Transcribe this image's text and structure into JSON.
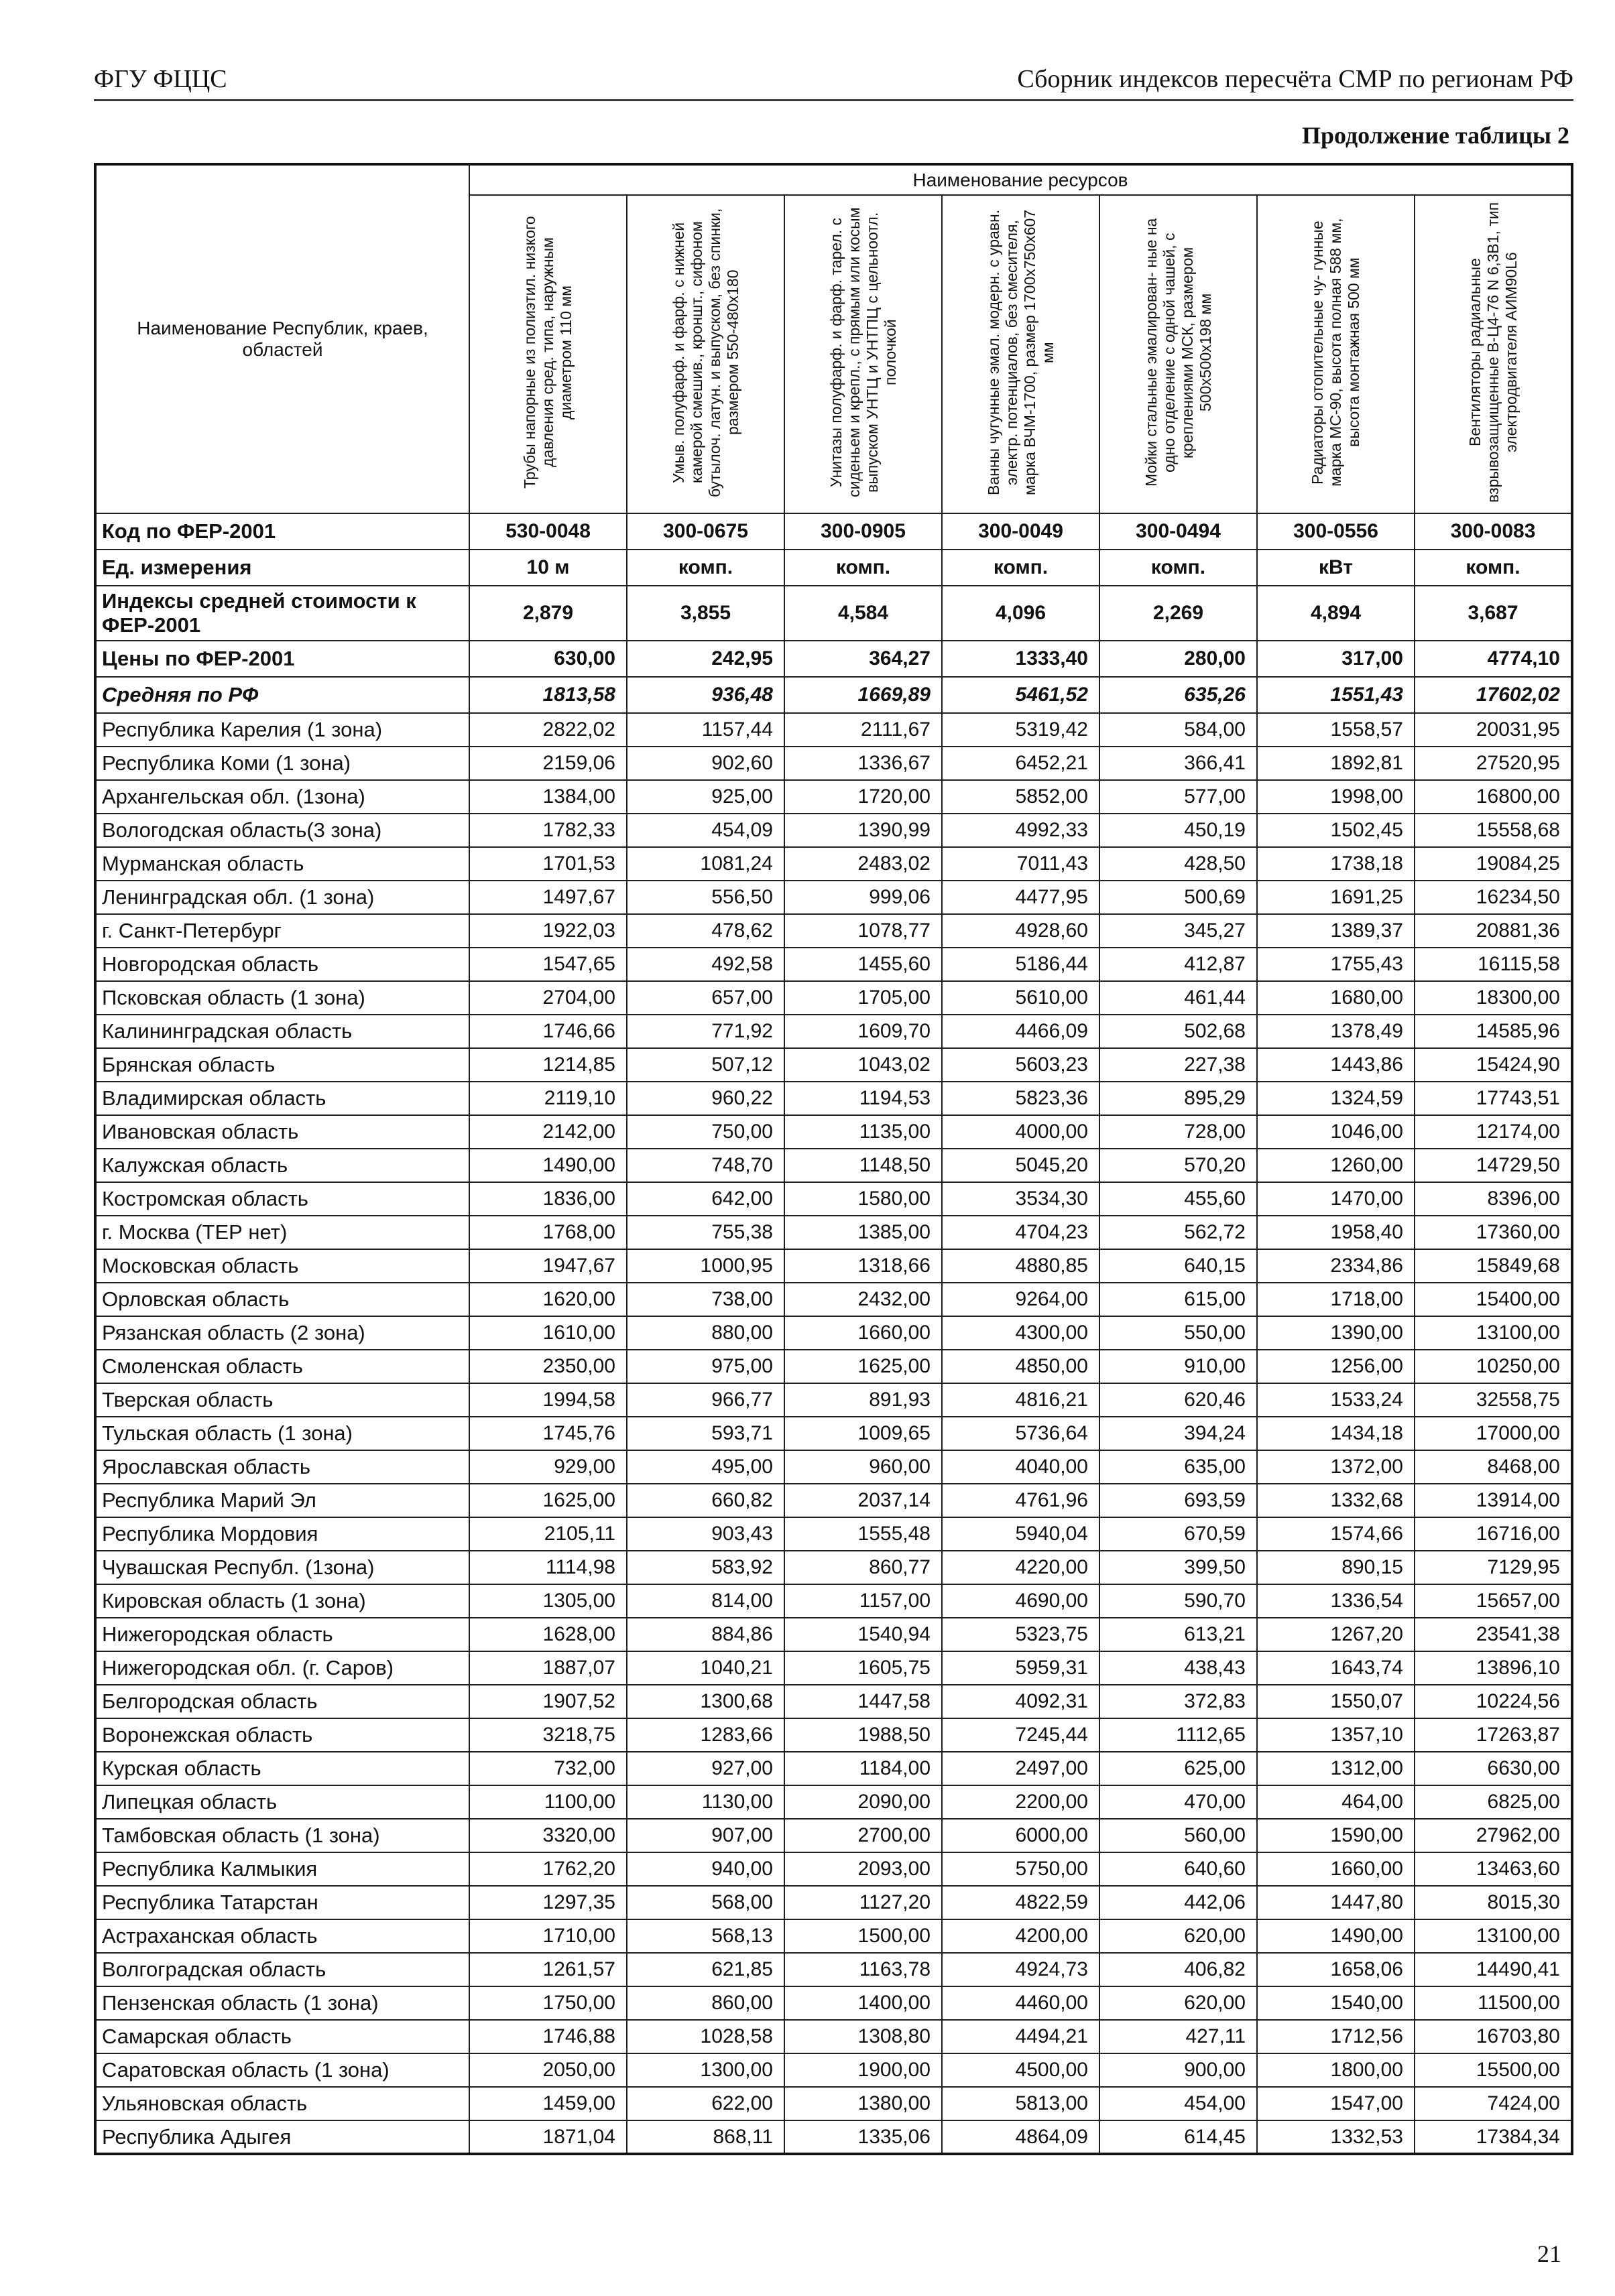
{
  "page": {
    "header_left": "ФГУ ФЦЦС",
    "header_right": "Сборник индексов пересчёта СМР  по регионам РФ",
    "subtitle": "Продолжение таблицы 2",
    "page_number": "21"
  },
  "table": {
    "resources_header": "Наименование ресурсов",
    "region_col_header": "Наименование Республик, краев, областей",
    "row_labels": {
      "code": "Код по ФЕР-2001",
      "unit": "Ед. измерения",
      "index": "Индексы средней стоимости к ФЕР-2001",
      "price": "Цены по ФЕР-2001",
      "avg": "Средняя по РФ"
    },
    "columns": [
      {
        "title": "Трубы напорные из полиэтил. низкого давления сред. типа, наружным диаметром 110 мм",
        "code": "530-0048",
        "unit": "10 м",
        "index": "2,879",
        "price": "630,00",
        "avg": "1813,58"
      },
      {
        "title": "Умыв. полуфарф. и фарф. с нижней камерой смешив., кроншт., сифоном бутылоч. латун. и выпуском, без спинки, размером 550-480х180",
        "code": "300-0675",
        "unit": "комп.",
        "index": "3,855",
        "price": "242,95",
        "avg": "936,48"
      },
      {
        "title": "Унитазы полуфарф. и фарф. тарел. с сиденьем и крепл., с прямым или косым выпуском УНТЦ и УНТПЦ с цельноотл. полочкой",
        "code": "300-0905",
        "unit": "комп.",
        "index": "4,584",
        "price": "364,27",
        "avg": "1669,89"
      },
      {
        "title": "Ванны чугунные эмал. модерн. с уравн. электр. потенциалов, без смесителя, марка ВЧМ-1700, размер 1700х750х607 мм",
        "code": "300-0049",
        "unit": "комп.",
        "index": "4,096",
        "price": "1333,40",
        "avg": "5461,52"
      },
      {
        "title": "Мойки стальные эмалирован- ные на одно отделение с одной чашей, с креплениями МСК, размером 500х500х198 мм",
        "code": "300-0494",
        "unit": "комп.",
        "index": "2,269",
        "price": "280,00",
        "avg": "635,26"
      },
      {
        "title": "Радиаторы отопительные чу- гунные марка МС-90, высота полная 588 мм, высота монтажная 500 мм",
        "code": "300-0556",
        "unit": "кВт",
        "index": "4,894",
        "price": "317,00",
        "avg": "1551,43"
      },
      {
        "title": "Вентиляторы радиальные взрывозащищенные В-Ц4-76 N 6,3В1, тип электродвигателя АИМ90L6",
        "code": "300-0083",
        "unit": "комп.",
        "index": "3,687",
        "price": "4774,10",
        "avg": "17602,02"
      }
    ],
    "rows": [
      {
        "name": "Республика Карелия (1 зона)",
        "values": [
          "2822,02",
          "1157,44",
          "2111,67",
          "5319,42",
          "584,00",
          "1558,57",
          "20031,95"
        ]
      },
      {
        "name": "Республика Коми (1 зона)",
        "values": [
          "2159,06",
          "902,60",
          "1336,67",
          "6452,21",
          "366,41",
          "1892,81",
          "27520,95"
        ]
      },
      {
        "name": "Архангельская обл. (1зона)",
        "values": [
          "1384,00",
          "925,00",
          "1720,00",
          "5852,00",
          "577,00",
          "1998,00",
          "16800,00"
        ]
      },
      {
        "name": "Вологодская область(3 зона)",
        "values": [
          "1782,33",
          "454,09",
          "1390,99",
          "4992,33",
          "450,19",
          "1502,45",
          "15558,68"
        ]
      },
      {
        "name": "Мурманская область",
        "values": [
          "1701,53",
          "1081,24",
          "2483,02",
          "7011,43",
          "428,50",
          "1738,18",
          "19084,25"
        ]
      },
      {
        "name": "Ленинградская обл. (1 зона)",
        "values": [
          "1497,67",
          "556,50",
          "999,06",
          "4477,95",
          "500,69",
          "1691,25",
          "16234,50"
        ]
      },
      {
        "name": "г. Санкт-Петербург",
        "values": [
          "1922,03",
          "478,62",
          "1078,77",
          "4928,60",
          "345,27",
          "1389,37",
          "20881,36"
        ]
      },
      {
        "name": "Новгородская область",
        "values": [
          "1547,65",
          "492,58",
          "1455,60",
          "5186,44",
          "412,87",
          "1755,43",
          "16115,58"
        ]
      },
      {
        "name": "Псковская область (1 зона)",
        "values": [
          "2704,00",
          "657,00",
          "1705,00",
          "5610,00",
          "461,44",
          "1680,00",
          "18300,00"
        ]
      },
      {
        "name": "Калининградская область",
        "values": [
          "1746,66",
          "771,92",
          "1609,70",
          "4466,09",
          "502,68",
          "1378,49",
          "14585,96"
        ]
      },
      {
        "name": "Брянская область",
        "values": [
          "1214,85",
          "507,12",
          "1043,02",
          "5603,23",
          "227,38",
          "1443,86",
          "15424,90"
        ]
      },
      {
        "name": "Владимирская область",
        "values": [
          "2119,10",
          "960,22",
          "1194,53",
          "5823,36",
          "895,29",
          "1324,59",
          "17743,51"
        ]
      },
      {
        "name": "Ивановская область",
        "values": [
          "2142,00",
          "750,00",
          "1135,00",
          "4000,00",
          "728,00",
          "1046,00",
          "12174,00"
        ]
      },
      {
        "name": "Калужская область",
        "values": [
          "1490,00",
          "748,70",
          "1148,50",
          "5045,20",
          "570,20",
          "1260,00",
          "14729,50"
        ]
      },
      {
        "name": "Костромская область",
        "values": [
          "1836,00",
          "642,00",
          "1580,00",
          "3534,30",
          "455,60",
          "1470,00",
          "8396,00"
        ]
      },
      {
        "name": "г. Москва (ТЕР нет)",
        "values": [
          "1768,00",
          "755,38",
          "1385,00",
          "4704,23",
          "562,72",
          "1958,40",
          "17360,00"
        ]
      },
      {
        "name": "Московская область",
        "values": [
          "1947,67",
          "1000,95",
          "1318,66",
          "4880,85",
          "640,15",
          "2334,86",
          "15849,68"
        ]
      },
      {
        "name": "Орловская область",
        "values": [
          "1620,00",
          "738,00",
          "2432,00",
          "9264,00",
          "615,00",
          "1718,00",
          "15400,00"
        ]
      },
      {
        "name": "Рязанская область (2 зона)",
        "values": [
          "1610,00",
          "880,00",
          "1660,00",
          "4300,00",
          "550,00",
          "1390,00",
          "13100,00"
        ]
      },
      {
        "name": "Смоленская область",
        "values": [
          "2350,00",
          "975,00",
          "1625,00",
          "4850,00",
          "910,00",
          "1256,00",
          "10250,00"
        ]
      },
      {
        "name": "Тверская область",
        "values": [
          "1994,58",
          "966,77",
          "891,93",
          "4816,21",
          "620,46",
          "1533,24",
          "32558,75"
        ]
      },
      {
        "name": "Тульская область (1 зона)",
        "values": [
          "1745,76",
          "593,71",
          "1009,65",
          "5736,64",
          "394,24",
          "1434,18",
          "17000,00"
        ]
      },
      {
        "name": "Ярославская область",
        "values": [
          "929,00",
          "495,00",
          "960,00",
          "4040,00",
          "635,00",
          "1372,00",
          "8468,00"
        ]
      },
      {
        "name": "Республика Марий Эл",
        "values": [
          "1625,00",
          "660,82",
          "2037,14",
          "4761,96",
          "693,59",
          "1332,68",
          "13914,00"
        ]
      },
      {
        "name": "Республика Мордовия",
        "values": [
          "2105,11",
          "903,43",
          "1555,48",
          "5940,04",
          "670,59",
          "1574,66",
          "16716,00"
        ]
      },
      {
        "name": "Чувашская Республ. (1зона)",
        "values": [
          "1114,98",
          "583,92",
          "860,77",
          "4220,00",
          "399,50",
          "890,15",
          "7129,95"
        ]
      },
      {
        "name": "Кировская область (1 зона)",
        "values": [
          "1305,00",
          "814,00",
          "1157,00",
          "4690,00",
          "590,70",
          "1336,54",
          "15657,00"
        ]
      },
      {
        "name": "Нижегородская область",
        "values": [
          "1628,00",
          "884,86",
          "1540,94",
          "5323,75",
          "613,21",
          "1267,20",
          "23541,38"
        ]
      },
      {
        "name": "Нижегородская обл. (г. Саров)",
        "values": [
          "1887,07",
          "1040,21",
          "1605,75",
          "5959,31",
          "438,43",
          "1643,74",
          "13896,10"
        ]
      },
      {
        "name": "Белгородская область",
        "values": [
          "1907,52",
          "1300,68",
          "1447,58",
          "4092,31",
          "372,83",
          "1550,07",
          "10224,56"
        ]
      },
      {
        "name": "Воронежская область",
        "values": [
          "3218,75",
          "1283,66",
          "1988,50",
          "7245,44",
          "1112,65",
          "1357,10",
          "17263,87"
        ]
      },
      {
        "name": "Курская область",
        "values": [
          "732,00",
          "927,00",
          "1184,00",
          "2497,00",
          "625,00",
          "1312,00",
          "6630,00"
        ]
      },
      {
        "name": "Липецкая область",
        "values": [
          "1100,00",
          "1130,00",
          "2090,00",
          "2200,00",
          "470,00",
          "464,00",
          "6825,00"
        ]
      },
      {
        "name": "Тамбовская область (1 зона)",
        "values": [
          "3320,00",
          "907,00",
          "2700,00",
          "6000,00",
          "560,00",
          "1590,00",
          "27962,00"
        ]
      },
      {
        "name": "Республика Калмыкия",
        "values": [
          "1762,20",
          "940,00",
          "2093,00",
          "5750,00",
          "640,60",
          "1660,00",
          "13463,60"
        ]
      },
      {
        "name": "Республика Татарстан",
        "values": [
          "1297,35",
          "568,00",
          "1127,20",
          "4822,59",
          "442,06",
          "1447,80",
          "8015,30"
        ]
      },
      {
        "name": "Астраханская область",
        "values": [
          "1710,00",
          "568,13",
          "1500,00",
          "4200,00",
          "620,00",
          "1490,00",
          "13100,00"
        ]
      },
      {
        "name": "Волгоградская область",
        "values": [
          "1261,57",
          "621,85",
          "1163,78",
          "4924,73",
          "406,82",
          "1658,06",
          "14490,41"
        ]
      },
      {
        "name": "Пензенская область (1 зона)",
        "values": [
          "1750,00",
          "860,00",
          "1400,00",
          "4460,00",
          "620,00",
          "1540,00",
          "11500,00"
        ]
      },
      {
        "name": "Самарская область",
        "values": [
          "1746,88",
          "1028,58",
          "1308,80",
          "4494,21",
          "427,11",
          "1712,56",
          "16703,80"
        ]
      },
      {
        "name": "Саратовская область (1 зона)",
        "values": [
          "2050,00",
          "1300,00",
          "1900,00",
          "4500,00",
          "900,00",
          "1800,00",
          "15500,00"
        ]
      },
      {
        "name": "Ульяновская область",
        "values": [
          "1459,00",
          "622,00",
          "1380,00",
          "5813,00",
          "454,00",
          "1547,00",
          "7424,00"
        ]
      },
      {
        "name": "Республика Адыгея",
        "values": [
          "1871,04",
          "868,11",
          "1335,06",
          "4864,09",
          "614,45",
          "1332,53",
          "17384,34"
        ]
      }
    ]
  }
}
